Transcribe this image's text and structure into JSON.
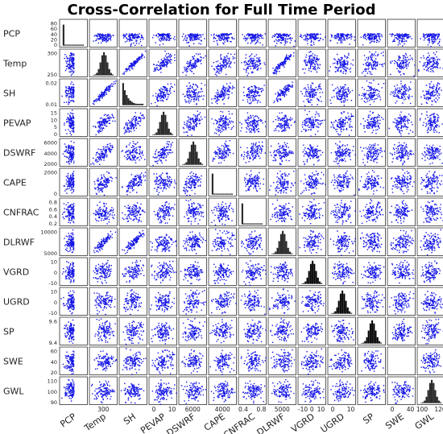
{
  "chart_data": {
    "type": "scatter",
    "title": "Cross-Correlation for Full Time Period",
    "marker_color": "#1414e6",
    "hist_color": "#000000",
    "variables": [
      {
        "name": "PCP",
        "display": "PCP",
        "yticks": [
          "80",
          "60",
          "40",
          "20",
          "0"
        ],
        "xticks": []
      },
      {
        "name": "Temp",
        "display": "Temp",
        "yticks": [
          "300",
          "250"
        ],
        "xticks": [
          "300"
        ]
      },
      {
        "name": "SH",
        "display": "SH",
        "yticks": [
          "0.02",
          "0.01"
        ],
        "xticks": []
      },
      {
        "name": "PEVAP",
        "display": "PEVAP",
        "yticks": [
          "15",
          "10",
          "5",
          "0"
        ],
        "xticks": [
          "0",
          "10"
        ]
      },
      {
        "name": "DSWRF",
        "display": "DSWRF",
        "yticks": [
          "6000",
          "4000",
          "2000"
        ],
        "xticks": [
          "6000"
        ]
      },
      {
        "name": "CAPE",
        "display": "CAPE",
        "yticks": [
          "2000",
          "0"
        ],
        "xticks": [
          "4000"
        ]
      },
      {
        "name": "CNFRAC",
        "display": "CNFRAC",
        "yticks": [
          "0.8",
          "0.6",
          "0.4",
          "0.2"
        ],
        "xticks": [
          "0.4",
          "0.8"
        ]
      },
      {
        "name": "DLRWF",
        "display": "DLRWF",
        "yticks": [
          "10000",
          "5000"
        ],
        "xticks": [
          "5000"
        ]
      },
      {
        "name": "VGRD",
        "display": "VGRD",
        "yticks": [
          "10",
          "0",
          "-10"
        ],
        "xticks": [
          "-10",
          "0",
          "10"
        ]
      },
      {
        "name": "UGRD",
        "display": "UGRD",
        "yticks": [
          "10",
          "0",
          "-10"
        ],
        "xticks": [
          "0",
          "10"
        ]
      },
      {
        "name": "SP",
        "display": "SP",
        "yticks": [
          "9.6",
          "9.4"
        ],
        "xticks": []
      },
      {
        "name": "SWE",
        "display": "SWE",
        "yticks": [
          "60",
          "40",
          "20"
        ],
        "xticks": [
          "0",
          "40"
        ]
      },
      {
        "name": "GWL",
        "display": "GWL",
        "yticks": [
          "110",
          "100",
          "90"
        ],
        "xticks": [
          "100",
          "120"
        ]
      }
    ],
    "diagonal": "histogram",
    "off_diagonal": "scatter",
    "grid": false,
    "legend": "none"
  }
}
